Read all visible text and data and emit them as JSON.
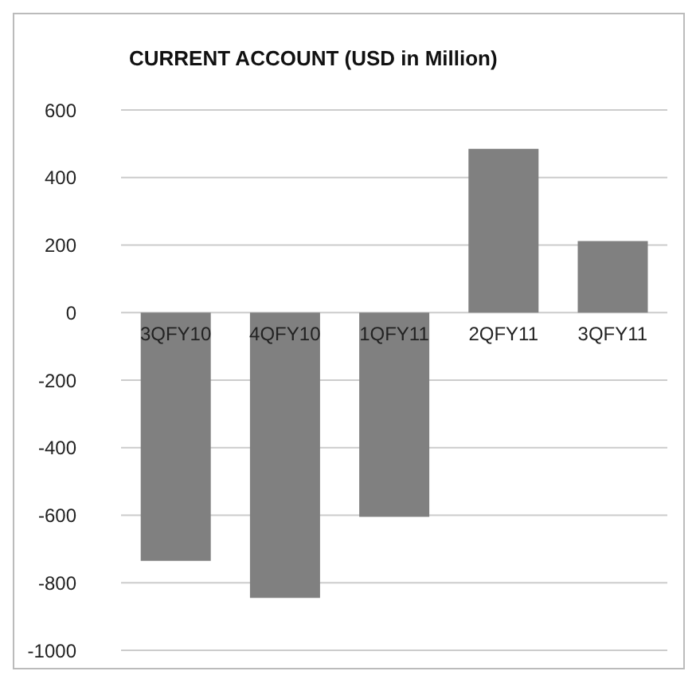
{
  "chart_data": {
    "type": "bar",
    "title": "CURRENT ACCOUNT (USD in Million)",
    "categories": [
      "3QFY10",
      "4QFY10",
      "1QFY11",
      "2QFY11",
      "3QFY11"
    ],
    "values": [
      -735,
      -845,
      -605,
      485,
      212
    ],
    "color": "#808080",
    "ylim": [
      -1000,
      600
    ],
    "yticks": [
      -1000,
      -800,
      -600,
      -400,
      -200,
      0,
      200,
      400,
      600
    ],
    "grid": "y",
    "legend": false
  }
}
